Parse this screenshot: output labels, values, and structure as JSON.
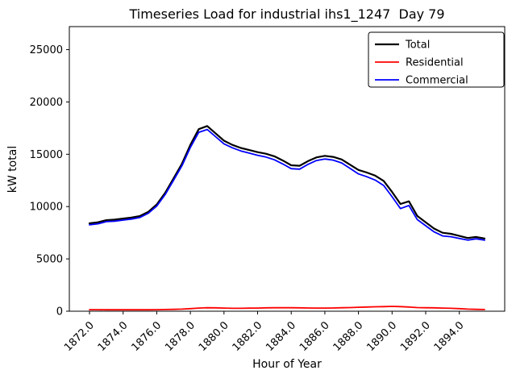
{
  "chart_data": {
    "type": "line",
    "title": "Timeseries Load for industrial ihs1_1247  Day 79",
    "xlabel": "Hour of Year",
    "ylabel": "kW total",
    "xlim": [
      1870.8,
      1896.7
    ],
    "ylim": [
      0,
      27200
    ],
    "grid": false,
    "xticks": {
      "values": [
        1872,
        1874,
        1876,
        1878,
        1880,
        1882,
        1884,
        1886,
        1888,
        1890,
        1892,
        1894
      ],
      "labels": [
        "1872.0",
        "1874.0",
        "1876.0",
        "1878.0",
        "1880.0",
        "1882.0",
        "1884.0",
        "1886.0",
        "1888.0",
        "1890.0",
        "1892.0",
        "1894.0"
      ]
    },
    "yticks": {
      "values": [
        0,
        5000,
        10000,
        15000,
        20000,
        25000
      ],
      "labels": [
        "0",
        "5000",
        "10000",
        "15000",
        "20000",
        "25000"
      ]
    },
    "legend": {
      "position": "upper right",
      "entries": [
        "Total",
        "Residential",
        "Commercial"
      ]
    },
    "x": [
      1872.0,
      1872.5,
      1873.0,
      1873.5,
      1874.0,
      1874.5,
      1875.0,
      1875.5,
      1876.0,
      1876.5,
      1877.0,
      1877.5,
      1878.0,
      1878.5,
      1879.0,
      1879.5,
      1880.0,
      1880.5,
      1881.0,
      1881.5,
      1882.0,
      1882.5,
      1883.0,
      1883.5,
      1884.0,
      1884.5,
      1885.0,
      1885.5,
      1886.0,
      1886.5,
      1887.0,
      1887.5,
      1888.0,
      1888.5,
      1889.0,
      1889.5,
      1890.0,
      1890.5,
      1891.0,
      1891.5,
      1892.0,
      1892.5,
      1893.0,
      1893.5,
      1894.0,
      1894.5,
      1895.0,
      1895.5
    ],
    "series": [
      {
        "name": "Total",
        "color": "#000000",
        "lw": 2.2,
        "values": [
          8400,
          8500,
          8700,
          8750,
          8850,
          8950,
          9100,
          9500,
          10200,
          11300,
          12700,
          14100,
          15900,
          17400,
          17700,
          17000,
          16300,
          15900,
          15600,
          15400,
          15200,
          15050,
          14800,
          14400,
          13950,
          13900,
          14350,
          14700,
          14850,
          14750,
          14500,
          14000,
          13500,
          13250,
          12950,
          12450,
          11400,
          10250,
          10500,
          9100,
          8500,
          7900,
          7500,
          7400,
          7200,
          7000,
          7100,
          6950
        ]
      },
      {
        "name": "Residential",
        "color": "#ff0000",
        "lw": 1.8,
        "values": [
          150,
          150,
          140,
          140,
          140,
          140,
          140,
          140,
          150,
          160,
          180,
          200,
          250,
          300,
          330,
          320,
          300,
          280,
          280,
          290,
          300,
          320,
          330,
          330,
          330,
          320,
          310,
          300,
          300,
          310,
          330,
          350,
          380,
          400,
          420,
          440,
          460,
          440,
          400,
          350,
          330,
          320,
          300,
          280,
          250,
          200,
          180,
          160
        ]
      },
      {
        "name": "Commercial",
        "color": "#0000ff",
        "lw": 1.8,
        "values": [
          8250,
          8350,
          8560,
          8610,
          8710,
          8810,
          8960,
          9360,
          10050,
          11140,
          12520,
          13900,
          15650,
          17100,
          17370,
          16680,
          16000,
          15620,
          15320,
          15110,
          14900,
          14730,
          14470,
          14070,
          13620,
          13580,
          14040,
          14400,
          14550,
          14440,
          14170,
          13650,
          13120,
          12850,
          12530,
          12010,
          10940,
          9810,
          10100,
          8750,
          8170,
          7580,
          7200,
          7120,
          6950,
          6800,
          6920,
          6790
        ]
      }
    ]
  }
}
